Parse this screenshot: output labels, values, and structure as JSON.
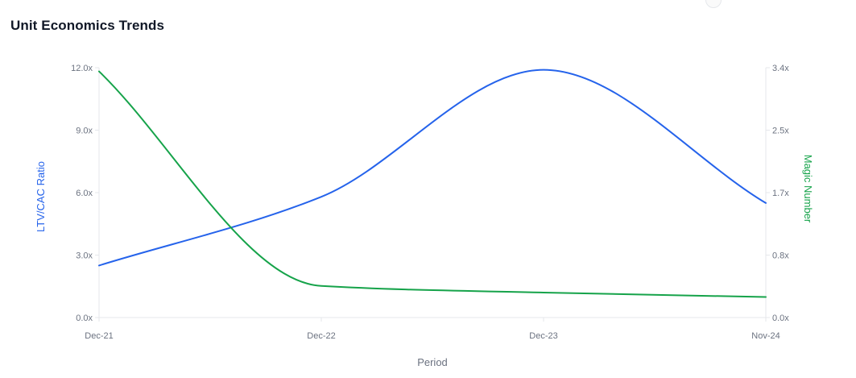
{
  "header": {
    "title": "Unit Economics Trends"
  },
  "colors": {
    "ltv_cac": "#2563eb",
    "magic_number": "#16a34a",
    "axis": "#e5e7eb",
    "tick_text": "#6b7280"
  },
  "chart_data": {
    "type": "line",
    "title": "Unit Economics Trends",
    "x": [
      "Dec-21",
      "Dec-22",
      "Dec-23",
      "Nov-24"
    ],
    "xlabel": "Period",
    "ylabel_left": "LTV/CAC Ratio",
    "ylabel_right": "Magic Number",
    "left_axis": {
      "range": [
        0,
        12
      ],
      "ticks": [
        0,
        3,
        6,
        9,
        12
      ],
      "tick_labels": [
        "0.0x",
        "3.0x",
        "6.0x",
        "9.0x",
        "12.0x"
      ]
    },
    "right_axis": {
      "range": [
        0,
        3.4
      ],
      "ticks": [
        0,
        0.85,
        1.7,
        2.55,
        3.4
      ],
      "tick_labels": [
        "0.0x",
        "0.8x",
        "1.7x",
        "2.5x",
        "3.4x"
      ]
    },
    "series": [
      {
        "name": "LTV/CAC Ratio",
        "axis": "left",
        "values": [
          2.5,
          5.8,
          11.9,
          5.5
        ]
      },
      {
        "name": "Magic Number",
        "axis": "right",
        "values": [
          3.35,
          0.43,
          0.34,
          0.28
        ]
      }
    ],
    "grid": false
  }
}
